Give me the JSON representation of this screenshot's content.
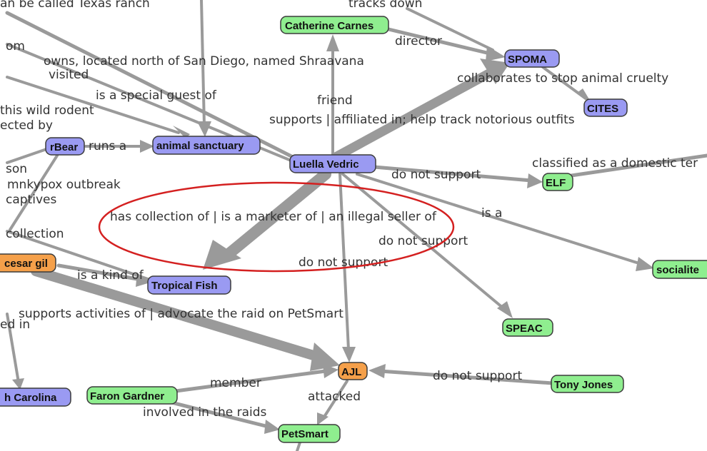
{
  "colors": {
    "person": "#8fee8f",
    "entity": "#9a9af2",
    "group": "#f5a04a",
    "edge": "#9a9a9a",
    "highlight": "#d42020"
  },
  "nodes": {
    "catherine": "Catherine Carnes",
    "spoma": "SPOMA",
    "cites": "CITES",
    "rbear": "rBear",
    "sanctuary": "animal sanctuary",
    "luella": "Luella Vedric",
    "elf": "ELF",
    "socialite": "socialite",
    "cesar": "cesar gil",
    "tropical": "Tropical Fish",
    "speac": "SPEAC",
    "ajl": "AJL",
    "tony": "Tony Jones",
    "carolina": "h Carolina",
    "faron": "Faron Gardner",
    "petsmart": "PetSmart"
  },
  "edge_labels": {
    "texas": "an be called Texas ranch",
    "tracks": "tracks down",
    "om": "om",
    "director": "director",
    "owns": "owns, located north of San Diego, named Shraavana",
    "visited": "visited",
    "collaborates": "collaborates to stop animal cruelty",
    "special_guest": "is a special guest of",
    "friend": "friend",
    "wild_rodent": "this wild rodent",
    "supports_affiliated": "supports | affiliated in; help track notorious outfits",
    "ected_by": "ected by",
    "runs": "runs a",
    "classified": "classified as a domestic ter",
    "son": "son",
    "do_not_support_elf": "do not support",
    "mnkypox": "mnkypox outbreak",
    "captives": "captives",
    "is_a": "is a",
    "has_collection": "has collection of | is a marketer of | an illegal seller of",
    "collection": "collection",
    "do_not_support_speac": "do not support",
    "do_not_support_ajl": "do not support",
    "kind_of": "is a kind of",
    "supports_activities": "supports activities of | advocate the raid on PetSmart",
    "ed_in": "ed in",
    "member": "member",
    "do_not_support_tony": "do not support",
    "attacked": "attacked",
    "involved": "involved in the raids"
  }
}
